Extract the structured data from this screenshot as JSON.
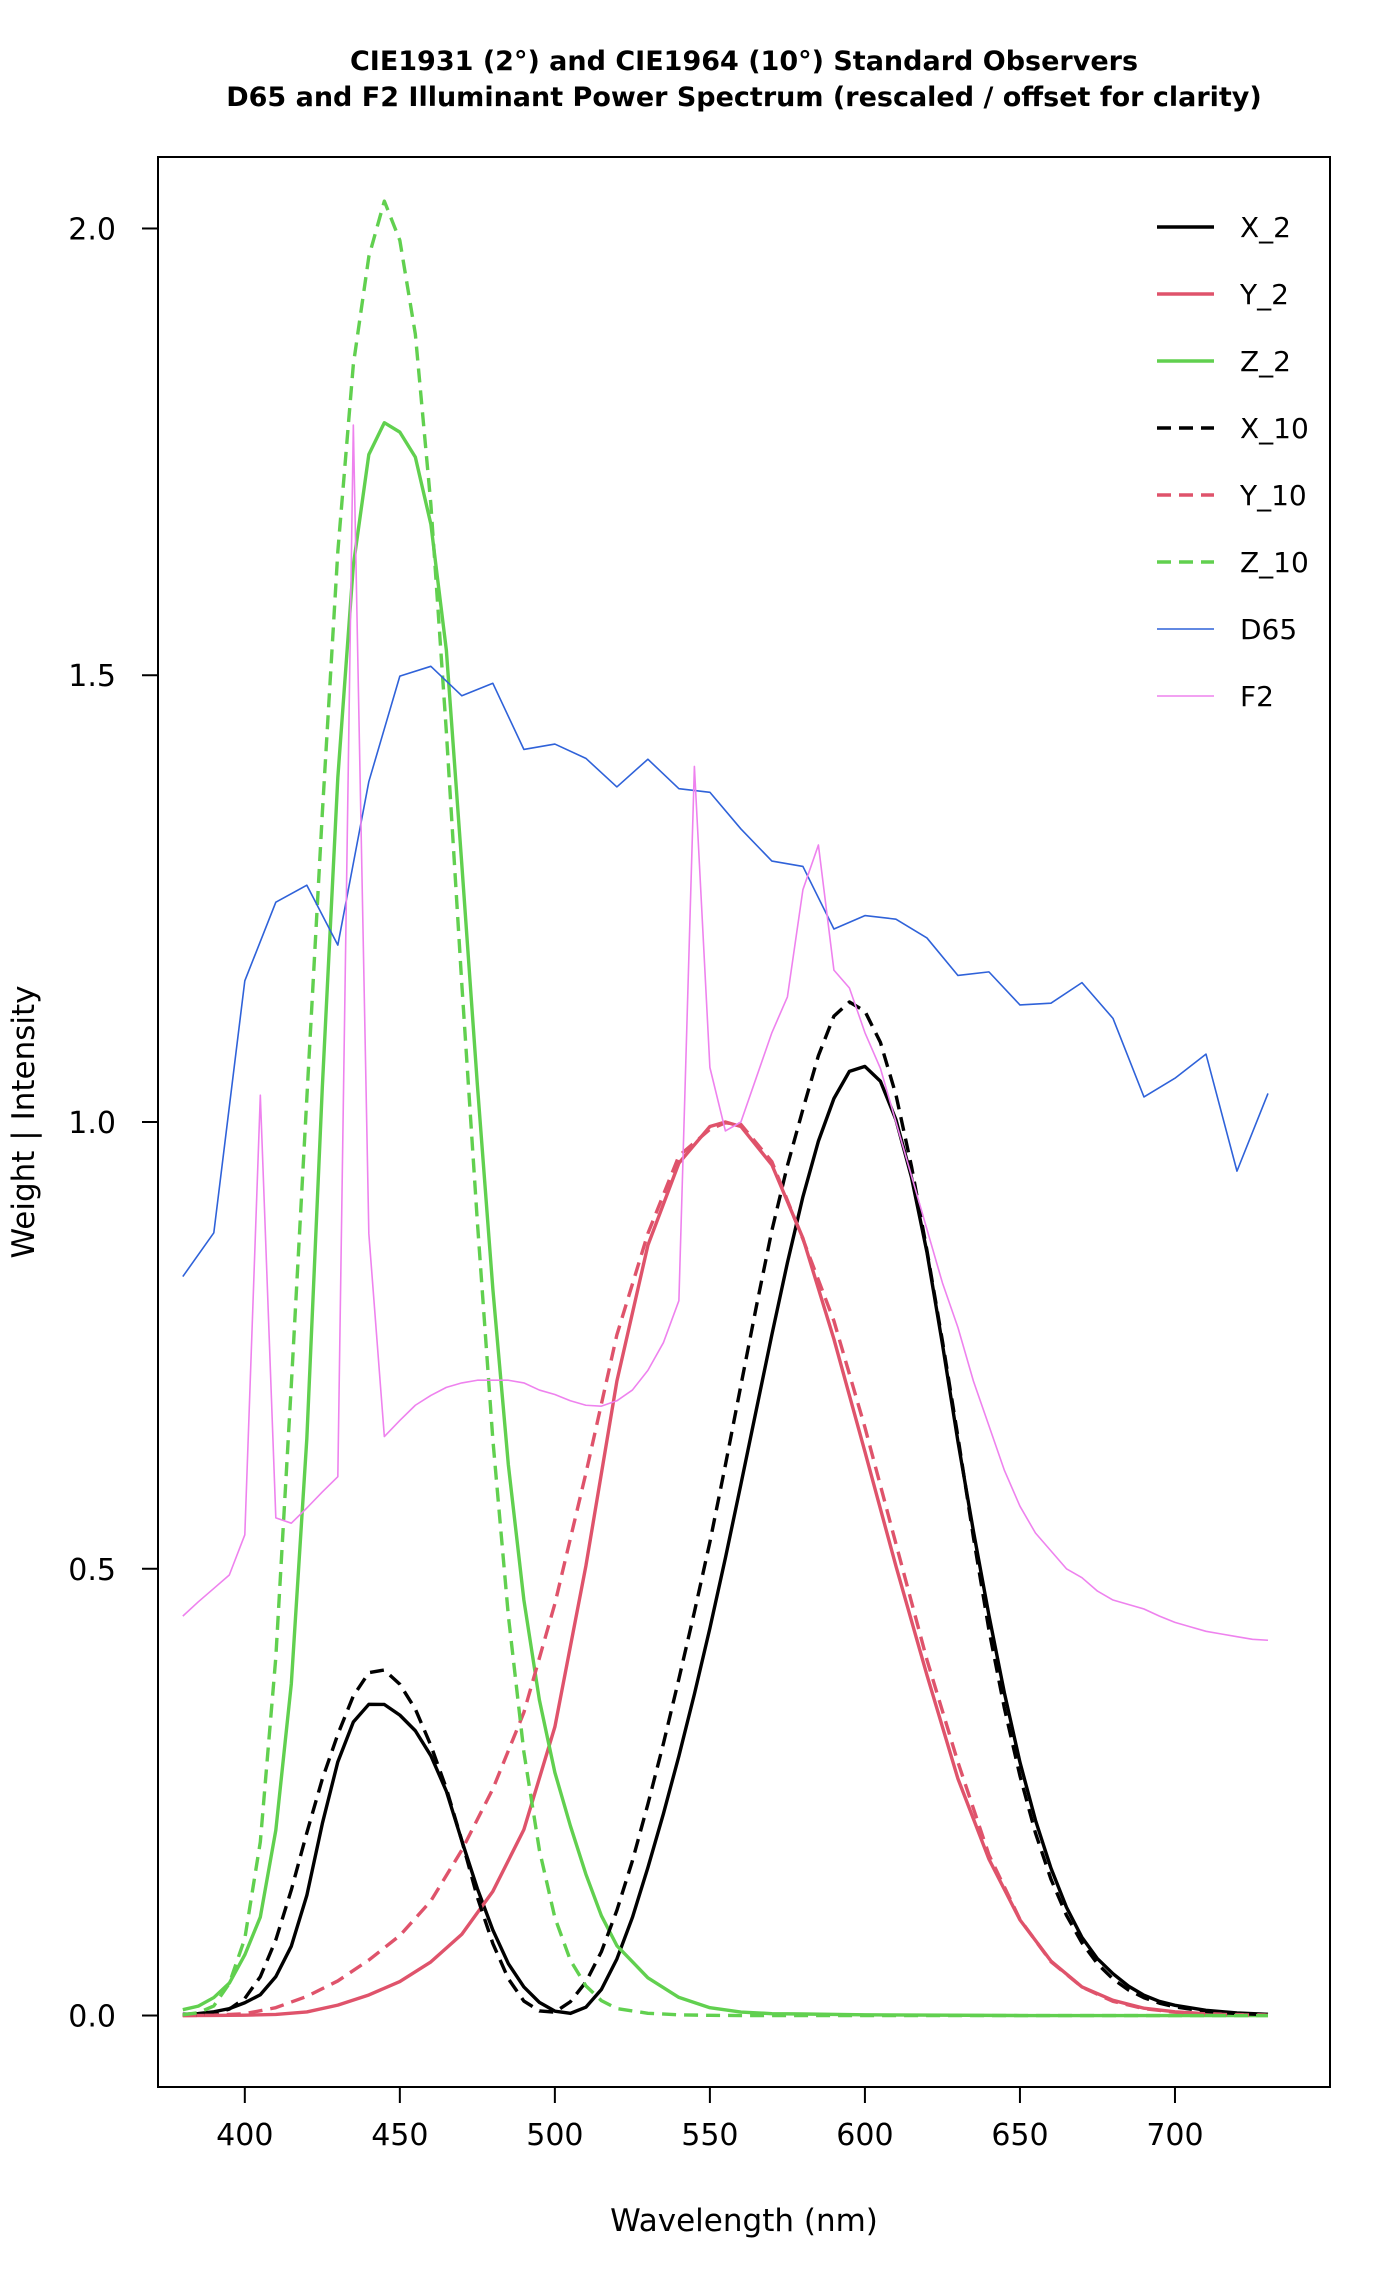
{
  "chart_data": {
    "type": "line",
    "title_lines": [
      "CIE1931 (2°) and CIE1964 (10°) Standard Observers",
      "D65 and F2 Illuminant Power Spectrum (rescaled / offset for clarity)"
    ],
    "xlabel": "Wavelength (nm)",
    "ylabel": "Weight | Intensity",
    "xlim": [
      372,
      750
    ],
    "ylim": [
      -0.08,
      2.08
    ],
    "xticks": [
      400,
      450,
      500,
      550,
      600,
      650,
      700
    ],
    "yticks": [
      0.0,
      0.5,
      1.0,
      1.5,
      2.0
    ],
    "ytick_labels": [
      "0.0",
      "0.5",
      "1.0",
      "1.5",
      "2.0"
    ],
    "grid": false,
    "legend_position": "top-right",
    "series": [
      {
        "name": "X_2",
        "color": "#000000",
        "dash": "solid",
        "width": 3.4,
        "x": [
          380,
          385,
          390,
          395,
          400,
          405,
          410,
          415,
          420,
          425,
          430,
          435,
          440,
          445,
          450,
          455,
          460,
          465,
          470,
          475,
          480,
          485,
          490,
          495,
          500,
          505,
          510,
          515,
          520,
          525,
          530,
          535,
          540,
          545,
          550,
          555,
          560,
          565,
          570,
          575,
          580,
          585,
          590,
          595,
          600,
          605,
          610,
          615,
          620,
          625,
          630,
          635,
          640,
          645,
          650,
          655,
          660,
          665,
          670,
          675,
          680,
          685,
          690,
          695,
          700,
          710,
          720,
          730
        ],
        "y": [
          0.0014,
          0.0022,
          0.0042,
          0.0077,
          0.0143,
          0.0232,
          0.0435,
          0.0776,
          0.1344,
          0.2148,
          0.2839,
          0.3285,
          0.3483,
          0.3481,
          0.3362,
          0.3187,
          0.2908,
          0.2511,
          0.1954,
          0.1421,
          0.0956,
          0.058,
          0.032,
          0.0147,
          0.0049,
          0.0024,
          0.0093,
          0.0291,
          0.0633,
          0.1096,
          0.1655,
          0.2257,
          0.2904,
          0.3597,
          0.4334,
          0.5121,
          0.5945,
          0.6784,
          0.7621,
          0.8425,
          0.9163,
          0.9786,
          1.0263,
          1.0567,
          1.0622,
          1.0456,
          1.0026,
          0.9384,
          0.8544,
          0.7514,
          0.6424,
          0.5419,
          0.4479,
          0.3608,
          0.2835,
          0.2187,
          0.1649,
          0.1212,
          0.0874,
          0.0636,
          0.0468,
          0.0329,
          0.0227,
          0.0158,
          0.0114,
          0.0058,
          0.0029,
          0.0014
        ]
      },
      {
        "name": "Y_2",
        "color": "#DF536B",
        "dash": "solid",
        "width": 3.4,
        "x": [
          380,
          390,
          400,
          410,
          420,
          430,
          440,
          450,
          460,
          470,
          480,
          490,
          500,
          510,
          520,
          530,
          540,
          550,
          555,
          560,
          570,
          580,
          590,
          600,
          610,
          620,
          630,
          640,
          650,
          660,
          670,
          680,
          690,
          700,
          710,
          720,
          730
        ],
        "y": [
          0.0,
          0.0001,
          0.0004,
          0.0012,
          0.004,
          0.0116,
          0.023,
          0.038,
          0.06,
          0.091,
          0.139,
          0.208,
          0.323,
          0.503,
          0.71,
          0.862,
          0.954,
          0.995,
          1.0,
          0.995,
          0.952,
          0.87,
          0.757,
          0.631,
          0.503,
          0.381,
          0.265,
          0.175,
          0.107,
          0.061,
          0.032,
          0.017,
          0.0082,
          0.0041,
          0.0021,
          0.001,
          0.0005
        ]
      },
      {
        "name": "Z_2",
        "color": "#61D04F",
        "dash": "solid",
        "width": 3.4,
        "x": [
          380,
          385,
          390,
          395,
          400,
          405,
          410,
          415,
          420,
          425,
          430,
          435,
          440,
          445,
          450,
          455,
          460,
          465,
          470,
          475,
          480,
          485,
          490,
          495,
          500,
          505,
          510,
          515,
          520,
          530,
          540,
          550,
          560,
          570,
          580,
          600,
          650,
          700,
          730
        ],
        "y": [
          0.0065,
          0.0105,
          0.0201,
          0.0362,
          0.0679,
          0.1102,
          0.2074,
          0.3713,
          0.6456,
          1.0391,
          1.3856,
          1.623,
          1.7471,
          1.7826,
          1.7721,
          1.7441,
          1.6692,
          1.5281,
          1.2876,
          1.0419,
          0.813,
          0.6162,
          0.4652,
          0.3533,
          0.272,
          0.2123,
          0.1582,
          0.1117,
          0.0782,
          0.0422,
          0.0203,
          0.0087,
          0.0039,
          0.0021,
          0.0017,
          0.0008,
          0.0,
          0.0,
          0.0
        ]
      },
      {
        "name": "X_10",
        "color": "#000000",
        "dash": "dashed",
        "width": 3.4,
        "x": [
          380,
          385,
          390,
          395,
          400,
          405,
          410,
          415,
          420,
          425,
          430,
          435,
          440,
          445,
          450,
          455,
          460,
          465,
          470,
          475,
          480,
          485,
          490,
          495,
          500,
          505,
          510,
          515,
          520,
          525,
          530,
          535,
          540,
          545,
          550,
          555,
          560,
          565,
          570,
          575,
          580,
          585,
          590,
          595,
          600,
          605,
          610,
          615,
          620,
          625,
          630,
          635,
          640,
          645,
          650,
          655,
          660,
          665,
          670,
          675,
          680,
          685,
          690,
          695,
          700,
          710,
          720,
          730
        ],
        "y": [
          0.0002,
          0.0007,
          0.0024,
          0.0072,
          0.0191,
          0.0434,
          0.0847,
          0.1406,
          0.2045,
          0.2647,
          0.3147,
          0.3577,
          0.3837,
          0.3867,
          0.3707,
          0.343,
          0.3023,
          0.2541,
          0.1956,
          0.1323,
          0.0805,
          0.0411,
          0.0162,
          0.0051,
          0.0038,
          0.0154,
          0.0375,
          0.0714,
          0.1177,
          0.173,
          0.2365,
          0.3042,
          0.3768,
          0.4516,
          0.5298,
          0.6161,
          0.7052,
          0.7938,
          0.8787,
          0.9512,
          1.0142,
          1.0743,
          1.1185,
          1.1343,
          1.124,
          1.0891,
          1.0305,
          0.9507,
          0.8563,
          0.7549,
          0.6475,
          0.5351,
          0.4316,
          0.3437,
          0.2683,
          0.2043,
          0.1526,
          0.1122,
          0.0813,
          0.0579,
          0.0409,
          0.0286,
          0.0199,
          0.0138,
          0.0096,
          0.0046,
          0.0022,
          0.001
        ]
      },
      {
        "name": "Y_10",
        "color": "#DF536B",
        "dash": "dashed",
        "width": 3.4,
        "x": [
          380,
          390,
          400,
          410,
          420,
          430,
          440,
          450,
          460,
          470,
          480,
          490,
          500,
          510,
          520,
          530,
          540,
          550,
          555,
          560,
          570,
          580,
          590,
          600,
          610,
          620,
          630,
          640,
          650,
          660,
          670,
          680,
          690,
          700,
          710,
          720,
          730
        ],
        "y": [
          0.0,
          0.0003,
          0.002,
          0.0088,
          0.0214,
          0.0387,
          0.0621,
          0.0895,
          0.1282,
          0.1852,
          0.2536,
          0.3391,
          0.4608,
          0.6067,
          0.7618,
          0.8752,
          0.962,
          0.9918,
          0.9991,
          0.9973,
          0.9555,
          0.8689,
          0.7774,
          0.6583,
          0.528,
          0.3981,
          0.2835,
          0.1798,
          0.1076,
          0.0603,
          0.0318,
          0.0159,
          0.0077,
          0.0037,
          0.0018,
          0.0008,
          0.0004
        ]
      },
      {
        "name": "Z_10",
        "color": "#61D04F",
        "dash": "dashed",
        "width": 3.4,
        "x": [
          380,
          385,
          390,
          395,
          400,
          405,
          410,
          415,
          420,
          425,
          430,
          435,
          440,
          445,
          450,
          455,
          460,
          465,
          470,
          475,
          480,
          485,
          490,
          495,
          500,
          505,
          510,
          515,
          520,
          530,
          540,
          550,
          560,
          570,
          580,
          600,
          650,
          700,
          730
        ],
        "y": [
          0.0008,
          0.0031,
          0.0107,
          0.0359,
          0.0862,
          0.1943,
          0.4008,
          0.7058,
          1.0265,
          1.3458,
          1.6385,
          1.8476,
          1.9685,
          2.0306,
          1.9867,
          1.8818,
          1.6914,
          1.4368,
          1.1536,
          0.8885,
          0.6443,
          0.4473,
          0.2951,
          0.1853,
          0.1095,
          0.0619,
          0.0332,
          0.0167,
          0.0078,
          0.0025,
          0.0008,
          0.0002,
          0.0,
          0.0,
          0.0,
          0.0,
          0.0,
          0.0,
          0.0
        ]
      },
      {
        "name": "D65",
        "color": "#2F62D9",
        "dash": "solid",
        "width": 1.6,
        "x": [
          380,
          390,
          400,
          410,
          420,
          430,
          440,
          450,
          460,
          470,
          480,
          490,
          500,
          510,
          520,
          530,
          540,
          550,
          560,
          570,
          580,
          590,
          600,
          610,
          620,
          630,
          640,
          650,
          660,
          670,
          680,
          690,
          700,
          710,
          720,
          730
        ],
        "y": [
          0.827,
          0.876,
          1.158,
          1.246,
          1.265,
          1.198,
          1.381,
          1.499,
          1.51,
          1.477,
          1.491,
          1.417,
          1.423,
          1.407,
          1.375,
          1.406,
          1.373,
          1.369,
          1.328,
          1.292,
          1.286,
          1.216,
          1.231,
          1.227,
          1.206,
          1.164,
          1.168,
          1.131,
          1.133,
          1.156,
          1.116,
          1.028,
          1.049,
          1.076,
          0.945,
          1.032
        ]
      },
      {
        "name": "F2",
        "color": "#EE82EE",
        "dash": "solid",
        "width": 1.6,
        "x": [
          380,
          385,
          390,
          395,
          400,
          405,
          410,
          415,
          420,
          425,
          430,
          435,
          440,
          445,
          450,
          455,
          460,
          465,
          470,
          475,
          480,
          485,
          490,
          495,
          500,
          505,
          510,
          515,
          520,
          525,
          530,
          535,
          540,
          545,
          550,
          555,
          560,
          565,
          570,
          575,
          580,
          585,
          590,
          595,
          600,
          605,
          610,
          615,
          620,
          625,
          630,
          635,
          640,
          645,
          650,
          655,
          660,
          665,
          670,
          675,
          680,
          685,
          690,
          695,
          700,
          705,
          710,
          715,
          720,
          725,
          730
        ],
        "y": [
          0.447,
          0.463,
          0.478,
          0.493,
          0.538,
          1.03,
          0.557,
          0.551,
          0.568,
          0.586,
          0.603,
          1.78,
          0.875,
          0.648,
          0.666,
          0.683,
          0.694,
          0.703,
          0.708,
          0.711,
          0.711,
          0.711,
          0.708,
          0.7,
          0.695,
          0.688,
          0.683,
          0.682,
          0.688,
          0.7,
          0.722,
          0.753,
          0.8,
          1.398,
          1.061,
          0.99,
          1.0,
          1.05,
          1.1,
          1.14,
          1.26,
          1.31,
          1.17,
          1.15,
          1.1,
          1.06,
          1.0,
          0.94,
          0.88,
          0.82,
          0.77,
          0.71,
          0.66,
          0.61,
          0.57,
          0.54,
          0.52,
          0.5,
          0.49,
          0.475,
          0.465,
          0.46,
          0.455,
          0.447,
          0.44,
          0.435,
          0.43,
          0.427,
          0.424,
          0.421,
          0.42
        ]
      }
    ]
  }
}
